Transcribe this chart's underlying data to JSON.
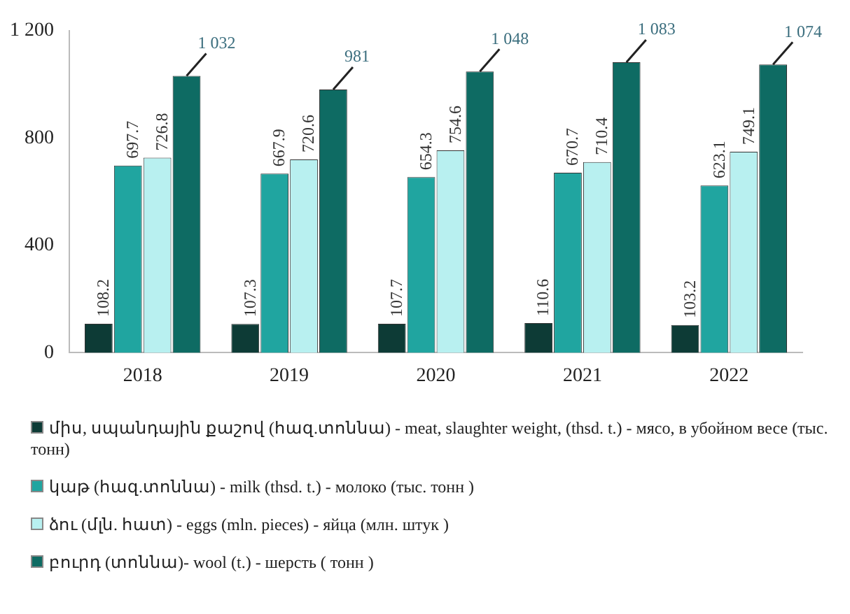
{
  "chart_data": {
    "type": "bar",
    "categories": [
      "2018",
      "2019",
      "2020",
      "2021",
      "2022"
    ],
    "ylim": [
      0,
      1200
    ],
    "yticks": [
      0,
      400,
      800,
      {
        "value": 1200,
        "label": "1 200"
      }
    ],
    "grid": false,
    "legend": "bottom",
    "series": [
      {
        "name": "միս, սպանդային քաշով (հազ.տոննա) - meat, slaughter weight, (thsd. t.) - мясо, в убойном весе (тыс. тонн)",
        "color": "#0d3b36",
        "values": [
          108.2,
          107.3,
          107.7,
          110.6,
          103.2
        ],
        "value_labels": [
          "108.2",
          "107.3",
          "107.7",
          "110.6",
          "103.2"
        ]
      },
      {
        "name": "կաթ (հազ.տոննա) - milk (thsd. t.) - молоко (тыс. тонн )",
        "color": "#20a5a0",
        "values": [
          697.7,
          667.9,
          654.3,
          670.7,
          623.1
        ],
        "value_labels": [
          "697.7",
          "667.9",
          "654.3",
          "670.7",
          "623.1"
        ]
      },
      {
        "name": "ձու (մլն. հատ) - eggs (mln. pieces) - яйца (млн. штук )",
        "color": "#b8f0f0",
        "values": [
          726.8,
          720.6,
          754.6,
          710.4,
          749.1
        ],
        "value_labels": [
          "726.8",
          "720.6",
          "754.6",
          "710.4",
          "749.1"
        ]
      },
      {
        "name": "բուրդ (տոննա)- wool (t.) - шерсть ( тонн )",
        "color": "#0e6b63",
        "values": [
          1032,
          981,
          1048,
          1083,
          1074
        ],
        "value_labels": [
          "1 032",
          "981",
          "1 048",
          "1 083",
          "1 074"
        ]
      }
    ]
  }
}
